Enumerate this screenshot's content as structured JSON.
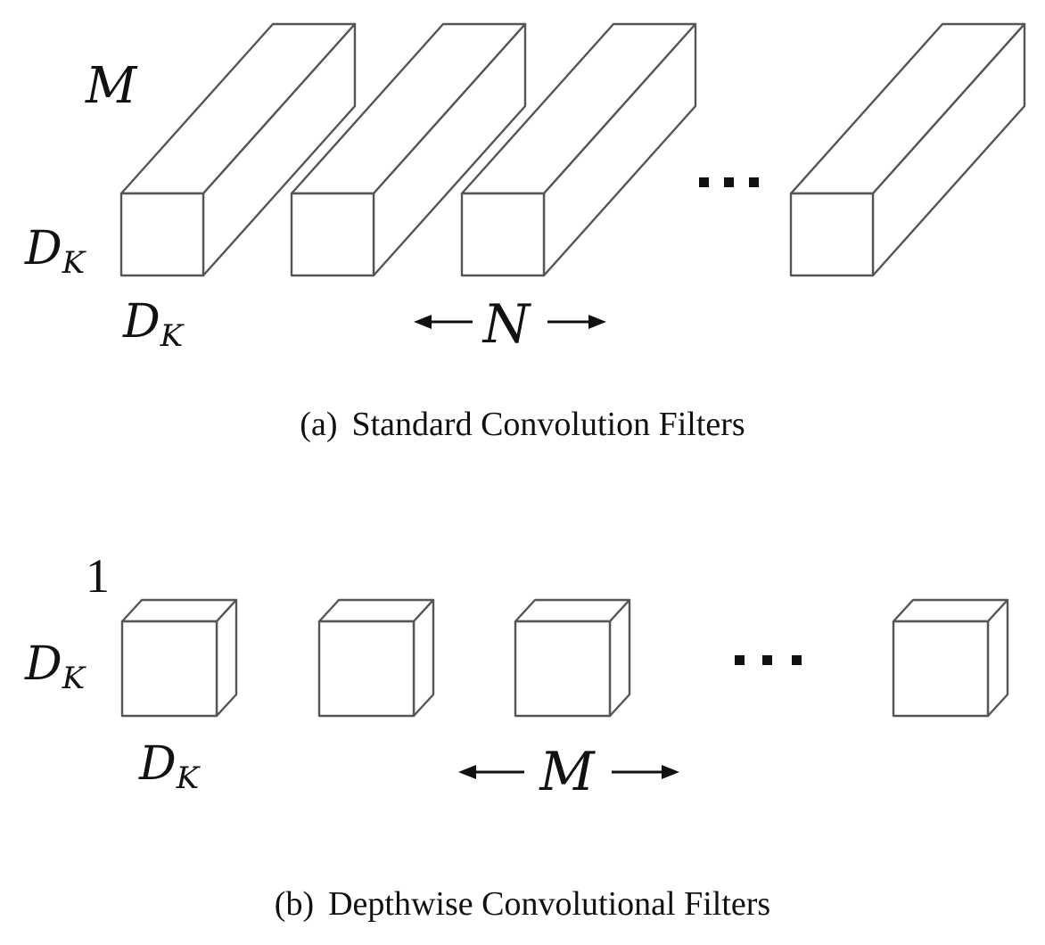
{
  "panel_a": {
    "depth_label": "M",
    "height_label": {
      "main": "D",
      "sub": "K"
    },
    "width_label": {
      "main": "D",
      "sub": "K"
    },
    "count_label": "N",
    "ellipsis": "...",
    "caption_tag": "(a)",
    "caption_text": "Standard Convolution Filters"
  },
  "panel_b": {
    "depth_label": "1",
    "height_label": {
      "main": "D",
      "sub": "K"
    },
    "width_label": {
      "main": "D",
      "sub": "K"
    },
    "count_label": "M",
    "ellipsis": "...",
    "caption_tag": "(b)",
    "caption_text": "Depthwise Convolutional Filters"
  }
}
